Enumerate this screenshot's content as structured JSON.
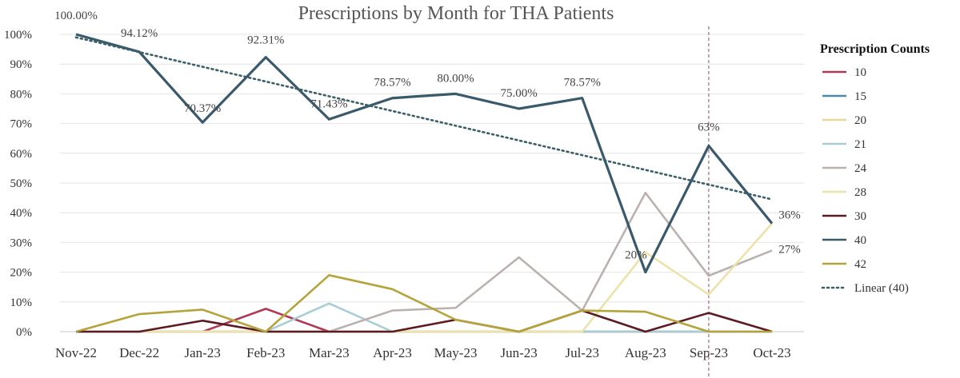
{
  "chart_data": {
    "type": "line",
    "title": "Prescriptions by Month for THA Patients",
    "xlabel": "",
    "ylabel": "",
    "ylim": [
      0,
      100
    ],
    "y_tick_labels": [
      "0%",
      "10%",
      "20%",
      "30%",
      "40%",
      "50%",
      "60%",
      "70%",
      "80%",
      "90%",
      "100%"
    ],
    "categories": [
      "Nov-22",
      "Dec-22",
      "Jan-23",
      "Feb-23",
      "Mar-23",
      "Apr-23",
      "May-23",
      "Jun-23",
      "Jul-23",
      "Aug-23",
      "Sep-23",
      "Oct-23"
    ],
    "legend_title": "Prescription Counts",
    "legend_position": "right",
    "series": [
      {
        "name": "10",
        "color": "#b03a55",
        "values": [
          0,
          0,
          0,
          7.7,
          0,
          0,
          0,
          0,
          0,
          0,
          0,
          0
        ]
      },
      {
        "name": "15",
        "color": "#4a8aa8",
        "values": [
          0,
          0,
          0,
          0,
          0,
          0,
          0,
          0,
          0,
          0,
          0,
          0
        ]
      },
      {
        "name": "20",
        "color": "#e8d898",
        "values": [
          0,
          0,
          0,
          0,
          0,
          0,
          0,
          0,
          0,
          0,
          0,
          0
        ]
      },
      {
        "name": "21",
        "color": "#a8cdd4",
        "values": [
          0,
          0,
          0,
          0,
          9.5,
          0,
          0,
          0,
          0,
          0,
          0,
          0
        ]
      },
      {
        "name": "24",
        "color": "#bbb2b0",
        "values": [
          0,
          0,
          0,
          0,
          0,
          7.1,
          8.0,
          25.0,
          7.1,
          46.7,
          18.8,
          27.3
        ],
        "data_labels": {
          "11": "27%"
        }
      },
      {
        "name": "28",
        "color": "#ece2aa",
        "values": [
          0,
          0,
          0,
          0,
          0,
          0,
          0,
          0,
          0,
          26.7,
          12.5,
          36.4
        ]
      },
      {
        "name": "30",
        "color": "#5c1a22",
        "values": [
          0,
          0,
          3.7,
          0,
          0,
          0,
          4.0,
          0,
          7.1,
          0,
          6.3,
          0
        ]
      },
      {
        "name": "40",
        "color": "#3a5a6c",
        "values": [
          100.0,
          94.12,
          70.37,
          92.31,
          71.43,
          78.57,
          80.0,
          75.0,
          78.57,
          20.0,
          62.5,
          36.4
        ],
        "data_labels": {
          "0": "100.00%",
          "1": "94.12%",
          "2": "70.37%",
          "3": "92.31%",
          "4": "71.43%",
          "5": "78.57%",
          "6": "80.00%",
          "7": "75.00%",
          "8": "78.57%",
          "9": "20%",
          "10": "63%",
          "11": "36%"
        }
      },
      {
        "name": "42",
        "color": "#b5a33c",
        "values": [
          0,
          5.9,
          7.4,
          0,
          19.0,
          14.3,
          4.0,
          0,
          7.1,
          6.7,
          0,
          0
        ]
      }
    ],
    "trendline": {
      "name": "Linear (40)",
      "color": "#3a5f68",
      "start": 99.0,
      "end": 44.5
    },
    "reference_line": {
      "category": "Sep-23",
      "color": "#c06070"
    }
  }
}
